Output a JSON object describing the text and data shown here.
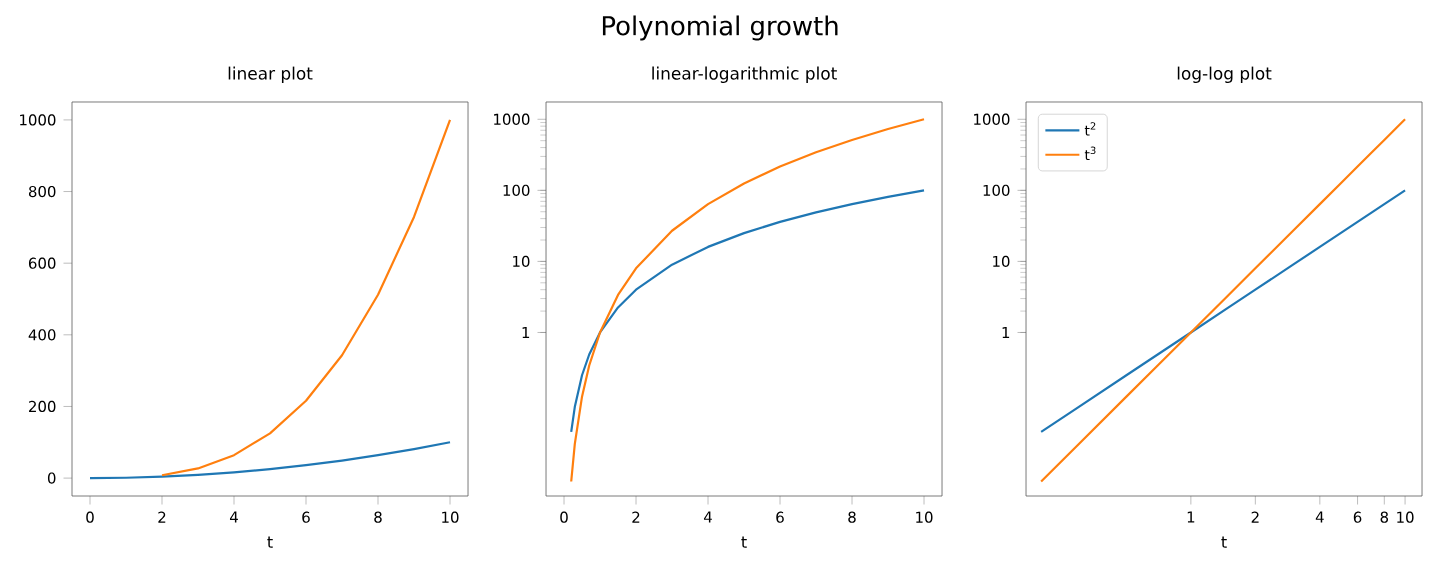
{
  "chart_data": [
    {
      "type": "line",
      "title": "linear plot",
      "xlabel": "t",
      "annotations": [
        "Polynomial growth"
      ],
      "x": [
        0,
        1,
        2,
        3,
        4,
        5,
        6,
        7,
        8,
        9,
        10
      ],
      "series": [
        {
          "color": "#1f77b4",
          "values": [
            0,
            1,
            4,
            9,
            16,
            25,
            36,
            49,
            64,
            81,
            100
          ]
        },
        {
          "color": "#ff7f0e",
          "x": [
            2,
            3,
            4,
            5,
            6,
            7,
            8,
            9,
            10
          ],
          "values": [
            8,
            27,
            64,
            125,
            216,
            343,
            512,
            729,
            1000
          ]
        }
      ],
      "xlim": [
        -0.5,
        10.5
      ],
      "ylim": [
        -50,
        1050
      ],
      "xticks": [
        0,
        2,
        4,
        6,
        8,
        10
      ],
      "yticks": [
        0,
        200,
        400,
        600,
        800,
        1000
      ]
    },
    {
      "type": "line",
      "title": "linear-logarithmic plot",
      "xlabel": "t",
      "x": [
        0.2,
        0.3,
        0.5,
        0.7,
        1,
        1.5,
        2,
        3,
        4,
        5,
        6,
        7,
        8,
        9,
        10
      ],
      "series": [
        {
          "color": "#1f77b4",
          "values": [
            0.04,
            0.09,
            0.25,
            0.49,
            1,
            2.25,
            4,
            9,
            16,
            25,
            36,
            49,
            64,
            81,
            100
          ]
        },
        {
          "color": "#ff7f0e",
          "values": [
            0.008,
            0.027,
            0.125,
            0.343,
            1,
            3.375,
            8,
            27,
            64,
            125,
            216,
            343,
            512,
            729,
            1000
          ]
        }
      ],
      "log": "y",
      "xlim": [
        -0.5,
        10.5
      ],
      "ylim": [
        0.005,
        1750
      ],
      "xticks": [
        0,
        2,
        4,
        6,
        8,
        10
      ],
      "yticks": [
        1,
        10,
        100,
        1000
      ]
    },
    {
      "type": "line",
      "title": "log-log plot",
      "xlabel": "t",
      "x": [
        0.2,
        0.3,
        0.5,
        0.7,
        1,
        1.5,
        2,
        3,
        4,
        5,
        6,
        7,
        8,
        9,
        10
      ],
      "series": [
        {
          "name": "t$^{2}$",
          "color": "#1f77b4",
          "values": [
            0.04,
            0.09,
            0.25,
            0.49,
            1,
            2.25,
            4,
            9,
            16,
            25,
            36,
            49,
            64,
            81,
            100
          ]
        },
        {
          "name": "t$^{3}$",
          "color": "#ff7f0e",
          "values": [
            0.008,
            0.027,
            0.125,
            0.343,
            1,
            3.375,
            8,
            27,
            64,
            125,
            216,
            343,
            512,
            729,
            1000
          ]
        }
      ],
      "log": "xy",
      "legend": "top left",
      "xlim": [
        0.17,
        12
      ],
      "ylim": [
        0.005,
        1750
      ],
      "xticks": [
        1,
        2,
        4,
        6,
        8,
        10
      ],
      "yticks": [
        1,
        10,
        100,
        1000
      ]
    }
  ]
}
